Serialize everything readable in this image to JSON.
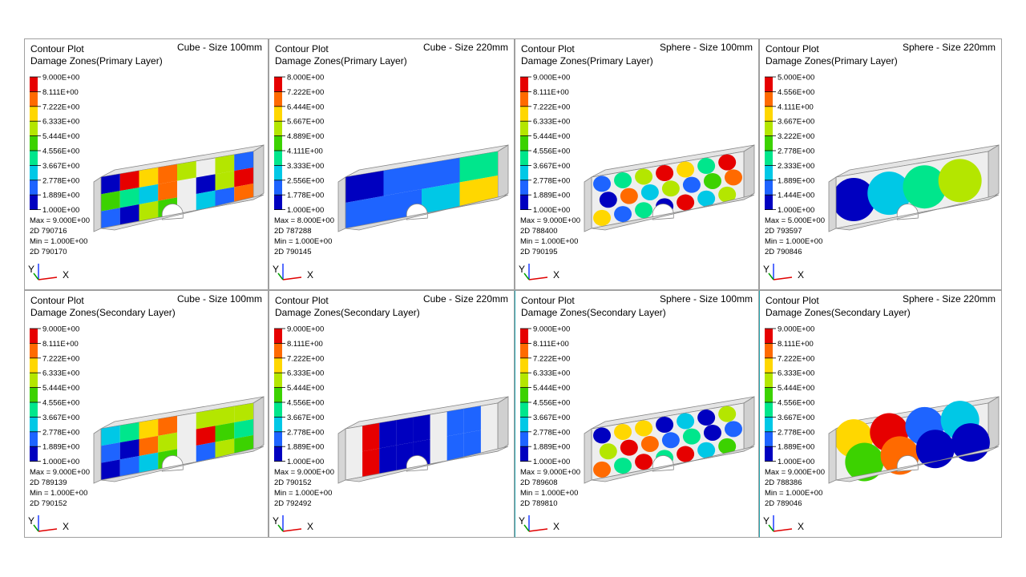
{
  "panels": [
    {
      "title": "Contour Plot",
      "subtitle": "Damage Zones(Primary Layer)",
      "size_label": "Cube - Size 100mm",
      "legend": [
        "9.000E+00",
        "8.111E+00",
        "7.222E+00",
        "6.333E+00",
        "5.444E+00",
        "4.556E+00",
        "3.667E+00",
        "2.778E+00",
        "1.889E+00",
        "1.000E+00"
      ],
      "max": "Max = 9.000E+00",
      "max_id": "2D 790716",
      "min": "Min = 1.000E+00",
      "min_id": "2D 790170",
      "axis_y": "Y",
      "axis_x": "X"
    },
    {
      "title": "Contour Plot",
      "subtitle": "Damage Zones(Primary Layer)",
      "size_label": "Cube  - Size 220mm",
      "legend": [
        "8.000E+00",
        "7.222E+00",
        "6.444E+00",
        "5.667E+00",
        "4.889E+00",
        "4.111E+00",
        "3.333E+00",
        "2.556E+00",
        "1.778E+00",
        "1.000E+00"
      ],
      "max": "Max = 8.000E+00",
      "max_id": "2D 787288",
      "min": "Min = 1.000E+00",
      "min_id": "2D 790145",
      "axis_y": "Y",
      "axis_x": "X"
    },
    {
      "title": "Contour Plot",
      "subtitle": "Damage Zones(Primary Layer)",
      "size_label": "Sphere  - Size 100mm",
      "legend": [
        "9.000E+00",
        "8.111E+00",
        "7.222E+00",
        "6.333E+00",
        "5.444E+00",
        "4.556E+00",
        "3.667E+00",
        "2.778E+00",
        "1.889E+00",
        "1.000E+00"
      ],
      "max": "Max = 9.000E+00",
      "max_id": "2D 788400",
      "min": "Min = 1.000E+00",
      "min_id": "2D 790195",
      "axis_y": "Y",
      "axis_x": "X"
    },
    {
      "title": "Contour Plot",
      "subtitle": "Damage Zones(Primary Layer)",
      "size_label": "Sphere  - Size 220mm",
      "legend": [
        "5.000E+00",
        "4.556E+00",
        "4.111E+00",
        "3.667E+00",
        "3.222E+00",
        "2.778E+00",
        "2.333E+00",
        "1.889E+00",
        "1.444E+00",
        "1.000E+00"
      ],
      "max": "Max = 5.000E+00",
      "max_id": "2D 793597",
      "min": "Min = 1.000E+00",
      "min_id": "2D 790846",
      "axis_y": "Y",
      "axis_x": "X"
    },
    {
      "title": "Contour Plot",
      "subtitle": "Damage Zones(Secondary Layer)",
      "size_label": "Cube - Size 100mm",
      "legend": [
        "9.000E+00",
        "8.111E+00",
        "7.222E+00",
        "6.333E+00",
        "5.444E+00",
        "4.556E+00",
        "3.667E+00",
        "2.778E+00",
        "1.889E+00",
        "1.000E+00"
      ],
      "max": "Max = 9.000E+00",
      "max_id": "2D 789139",
      "min": "Min = 1.000E+00",
      "min_id": "2D 790152",
      "axis_y": "Y",
      "axis_x": "X"
    },
    {
      "title": "Contour Plot",
      "subtitle": "Damage Zones(Secondary Layer)",
      "size_label": "Cube  - Size 220mm",
      "legend": [
        "9.000E+00",
        "8.111E+00",
        "7.222E+00",
        "6.333E+00",
        "5.444E+00",
        "4.556E+00",
        "3.667E+00",
        "2.778E+00",
        "1.889E+00",
        "1.000E+00"
      ],
      "max": "Max = 9.000E+00",
      "max_id": "2D 790152",
      "min": "Min = 1.000E+00",
      "min_id": "2D 792492",
      "axis_y": "Y",
      "axis_x": "X"
    },
    {
      "title": "Contour Plot",
      "subtitle": "Damage Zones(Secondary Layer)",
      "size_label": "Sphere  - Size 100mm",
      "legend": [
        "9.000E+00",
        "8.111E+00",
        "7.222E+00",
        "6.333E+00",
        "5.444E+00",
        "4.556E+00",
        "3.667E+00",
        "2.778E+00",
        "1.889E+00",
        "1.000E+00"
      ],
      "max": "Max = 9.000E+00",
      "max_id": "2D 789608",
      "min": "Min = 1.000E+00",
      "min_id": "2D 789810",
      "axis_y": "Y",
      "axis_x": "X"
    },
    {
      "title": "Contour Plot",
      "subtitle": "Damage Zones(Secondary Layer)",
      "size_label": "Sphere  - Size 220mm",
      "legend": [
        "9.000E+00",
        "8.111E+00",
        "7.222E+00",
        "6.333E+00",
        "5.444E+00",
        "4.556E+00",
        "3.667E+00",
        "2.778E+00",
        "1.889E+00",
        "1.000E+00"
      ],
      "max": "Max = 9.000E+00",
      "max_id": "2D 788386",
      "min": "Min = 1.000E+00",
      "min_id": "2D 789046",
      "axis_y": "Y",
      "axis_x": "X"
    }
  ],
  "legend_colors": [
    "#e60000",
    "#ff6a00",
    "#ffd700",
    "#b4e600",
    "#3cd200",
    "#00e68c",
    "#00c8e6",
    "#1e64ff",
    "#0000c0"
  ]
}
